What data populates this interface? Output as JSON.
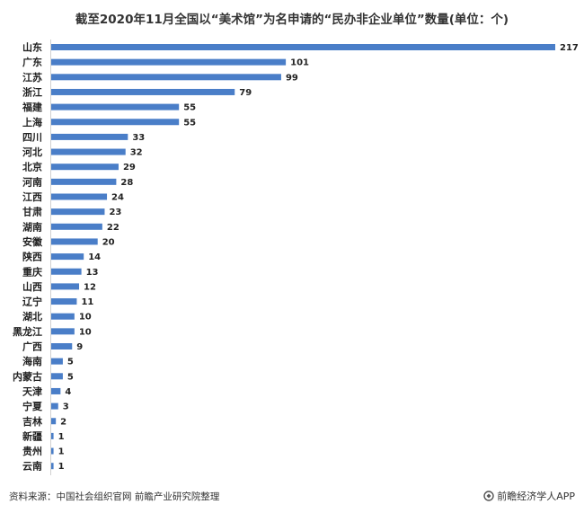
{
  "chart_data": {
    "type": "bar",
    "orientation": "horizontal",
    "title": "截至2020年11月全国以“美术馆”为名申请的“民办非企业单位”数量(单位：个)",
    "categories": [
      "山东",
      "广东",
      "江苏",
      "浙江",
      "福建",
      "上海",
      "四川",
      "河北",
      "北京",
      "河南",
      "江西",
      "甘肃",
      "湖南",
      "安徽",
      "陕西",
      "重庆",
      "山西",
      "辽宁",
      "湖北",
      "黑龙江",
      "广西",
      "海南",
      "内蒙古",
      "天津",
      "宁夏",
      "吉林",
      "新疆",
      "贵州",
      "云南"
    ],
    "values": [
      217,
      101,
      99,
      79,
      55,
      55,
      33,
      32,
      29,
      28,
      24,
      23,
      22,
      20,
      14,
      13,
      12,
      11,
      10,
      10,
      9,
      5,
      5,
      4,
      3,
      2,
      1,
      1,
      1
    ],
    "xlim": [
      0,
      217
    ],
    "grid": false,
    "legend": false,
    "bar_color": "#4a7ec8"
  },
  "footer": {
    "source": "资料来源：中国社会组织官网 前瞻产业研究院整理",
    "brand": "前瞻经济学人APP",
    "brand_icon": "qianzhan-logo-icon"
  }
}
